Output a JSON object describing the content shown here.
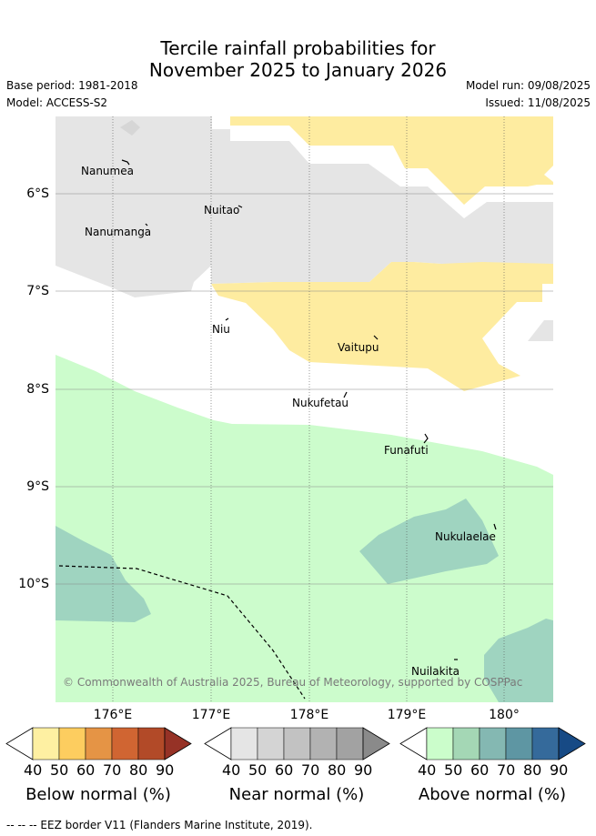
{
  "title_line1": "Tercile rainfall probabilities for",
  "title_line2": "November 2025 to January 2026",
  "base_period": "Base period: 1981-2018",
  "model": "Model: ACCESS-S2",
  "model_run": "Model run: 09/08/2025",
  "issued": "Issued: 11/08/2025",
  "lat_labels": [
    "6°S",
    "7°S",
    "8°S",
    "9°S",
    "10°S"
  ],
  "lon_labels": [
    "176°E",
    "177°E",
    "178°E",
    "179°E",
    "180°"
  ],
  "islands": [
    "Nanumea",
    "Nuitao",
    "Nanumanga",
    "Niu",
    "Vaitupu",
    "Nukufetau",
    "Funafuti",
    "Nukulaelae",
    "Nuilakita"
  ],
  "copyright": "© Commonwealth of Australia 2025, Bureau of Meteorology, supported by COSPPac",
  "colorbars": [
    {
      "title": "Below normal (%)",
      "ticks": [
        "40",
        "50",
        "60",
        "70",
        "80",
        "90"
      ],
      "colors": [
        "#ffffff",
        "#fef0a2",
        "#fdcd5f",
        "#e59445",
        "#d06532",
        "#b24a28",
        "#963226"
      ]
    },
    {
      "title": "Near normal (%)",
      "ticks": [
        "40",
        "50",
        "60",
        "70",
        "80",
        "90"
      ],
      "colors": [
        "#ffffff",
        "#e5e5e5",
        "#d4d4d4",
        "#c2c2c2",
        "#b2b2b2",
        "#a2a2a2",
        "#8a8a8a"
      ]
    },
    {
      "title": "Above normal (%)",
      "ticks": [
        "40",
        "50",
        "60",
        "70",
        "80",
        "90"
      ],
      "colors": [
        "#ffffff",
        "#cbfdcb",
        "#a4d7b5",
        "#84b8b2",
        "#5e96a3",
        "#356a9b",
        "#174a85"
      ]
    }
  ],
  "footer": "--  --  -- EEZ border V11 (Flanders Marine Institute, 2019).",
  "colors": {
    "near_40_50": "#e5e5e5",
    "below_40_50": "#feeca0",
    "above_40_50": "#ccfccc",
    "above_50_60": "#9fd4c0"
  }
}
